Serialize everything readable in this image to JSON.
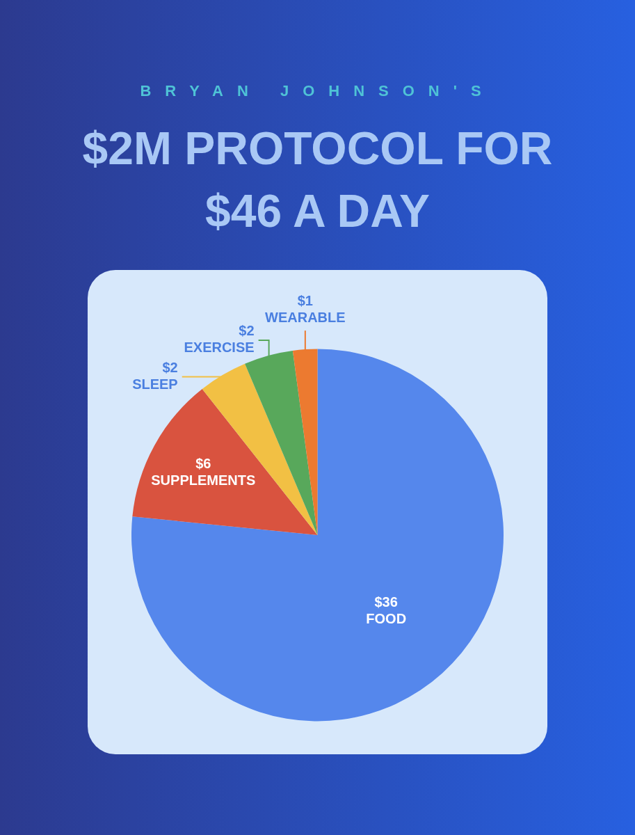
{
  "chart_data": {
    "type": "pie",
    "subtitle": "BRYAN JOHNSON'S",
    "title": "$2M PROTOCOL FOR $46 A DAY",
    "categories": [
      "FOOD",
      "SUPPLEMENTS",
      "SLEEP",
      "EXERCISE",
      "WEARABLE"
    ],
    "values": [
      36,
      6,
      2,
      2,
      1
    ],
    "colors": [
      "#5587ec",
      "#d9533f",
      "#f2c044",
      "#58a85b",
      "#ec7a30"
    ],
    "value_labels": [
      "$36",
      "$6",
      "$2",
      "$2",
      "$1"
    ]
  }
}
